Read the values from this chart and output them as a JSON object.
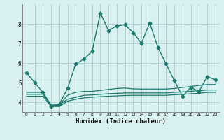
{
  "xlabel": "Humidex (Indice chaleur)",
  "x": [
    0,
    1,
    2,
    3,
    4,
    5,
    6,
    7,
    8,
    9,
    10,
    11,
    12,
    13,
    14,
    15,
    16,
    17,
    18,
    19,
    20,
    21,
    22,
    23
  ],
  "line1": [
    5.5,
    5.0,
    4.5,
    3.8,
    3.9,
    4.7,
    5.95,
    6.2,
    6.6,
    8.55,
    7.65,
    7.9,
    7.95,
    7.55,
    7.0,
    8.05,
    6.8,
    5.95,
    5.1,
    4.3,
    4.75,
    4.55,
    5.3,
    5.15
  ],
  "line2": [
    4.5,
    4.5,
    4.5,
    3.85,
    3.85,
    4.35,
    4.5,
    4.55,
    4.55,
    4.6,
    4.65,
    4.7,
    4.72,
    4.68,
    4.67,
    4.67,
    4.67,
    4.67,
    4.7,
    4.75,
    4.8,
    4.85,
    4.9,
    4.9
  ],
  "line3": [
    4.4,
    4.4,
    4.4,
    3.85,
    3.85,
    4.15,
    4.25,
    4.35,
    4.37,
    4.4,
    4.43,
    4.45,
    4.47,
    4.47,
    4.47,
    4.47,
    4.47,
    4.47,
    4.5,
    4.52,
    4.56,
    4.58,
    4.62,
    4.62
  ],
  "line4": [
    4.3,
    4.3,
    4.3,
    3.78,
    3.78,
    4.05,
    4.15,
    4.22,
    4.25,
    4.28,
    4.3,
    4.32,
    4.34,
    4.35,
    4.35,
    4.35,
    4.35,
    4.35,
    4.38,
    4.4,
    4.43,
    4.45,
    4.5,
    4.5
  ],
  "line_color": "#1a7a6e",
  "bg_color": "#d9f0f0",
  "grid_color": "#b0cece",
  "ylim": [
    3.5,
    9.0
  ],
  "xlim": [
    -0.5,
    23.5
  ],
  "yticks": [
    4,
    5,
    6,
    7,
    8
  ],
  "xticks": [
    0,
    1,
    2,
    3,
    4,
    5,
    6,
    7,
    8,
    9,
    10,
    11,
    12,
    13,
    14,
    15,
    16,
    17,
    18,
    19,
    20,
    21,
    22,
    23
  ]
}
